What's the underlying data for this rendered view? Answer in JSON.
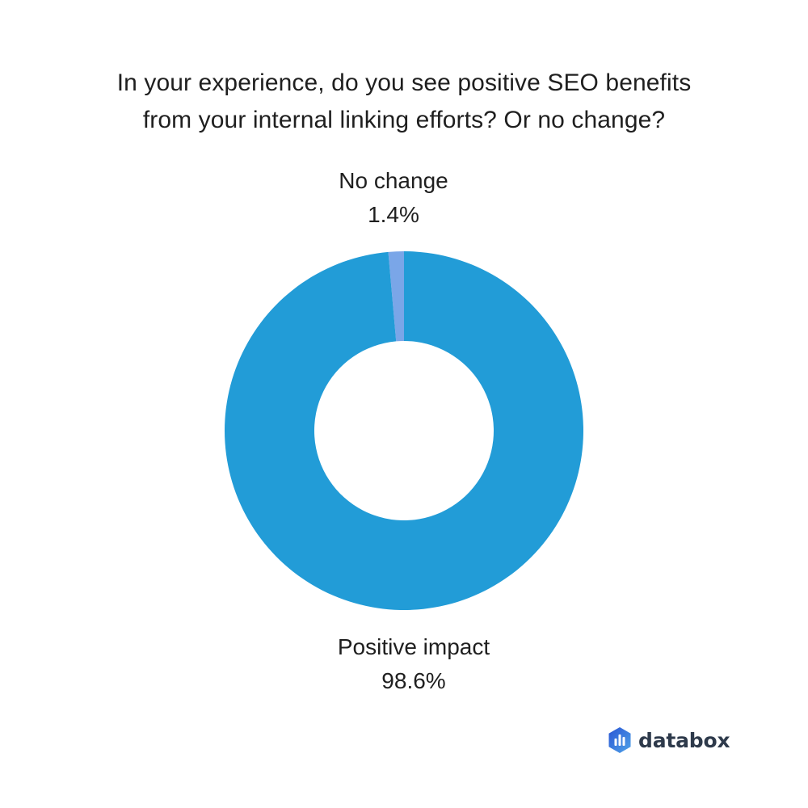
{
  "chart_data": {
    "type": "pie",
    "title_lines": [
      "In your experience, do you see positive SEO benefits",
      "from your internal linking efforts? Or no change?"
    ],
    "slices": [
      {
        "name": "No change",
        "value": 1.4,
        "label": "1.4%",
        "color": "#7aa6e8"
      },
      {
        "name": "Positive impact",
        "value": 98.6,
        "label": "98.6%",
        "color": "#229cd7"
      }
    ],
    "donut": true
  },
  "brand": {
    "name": "databox",
    "icon": "databox-logo-icon",
    "colors": [
      "#2a55d4",
      "#4fa3e8"
    ]
  }
}
